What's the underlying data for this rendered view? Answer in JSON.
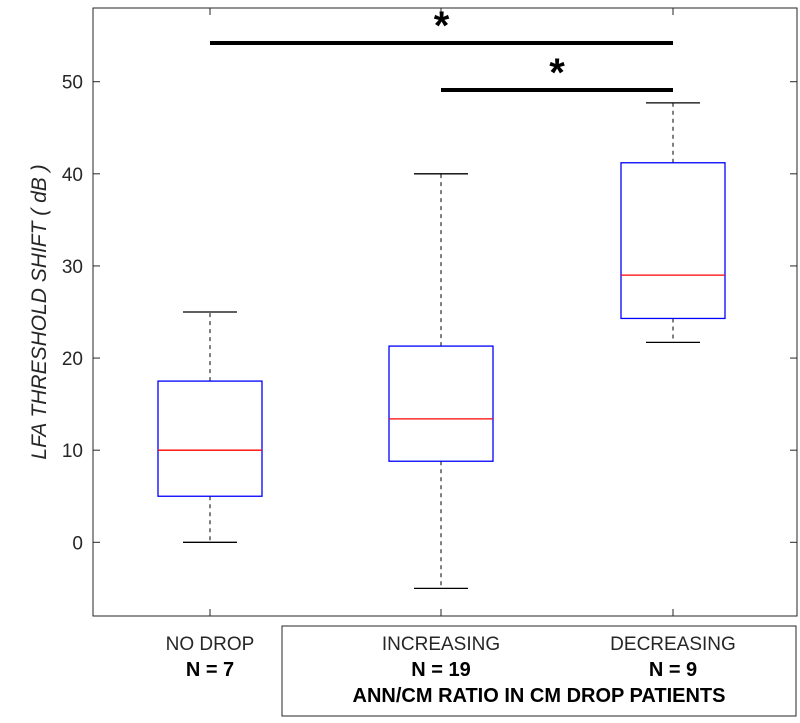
{
  "chart_data": {
    "type": "boxplot",
    "ylabel": "LFA THRESHOLD SHIFT  ( dB )",
    "ylim": [
      -8,
      58
    ],
    "yticks": [
      0,
      10,
      20,
      30,
      40,
      50
    ],
    "grid": false,
    "groups": [
      {
        "name": "NO DROP",
        "n_label": "N = 7",
        "whisker_low": 0,
        "q1": 5,
        "median": 10,
        "q3": 17.5,
        "whisker_high": 25
      },
      {
        "name": "INCREASING",
        "n_label": "N = 19",
        "whisker_low": -5,
        "q1": 8.8,
        "median": 13.4,
        "q3": 21.3,
        "whisker_high": 40
      },
      {
        "name": "DECREASING",
        "n_label": "N = 9",
        "whisker_low": 21.7,
        "q1": 24.3,
        "median": 29,
        "q3": 41.2,
        "whisker_high": 47.7
      }
    ],
    "group_box_label": "ANN/CM RATIO IN CM DROP PATIENTS",
    "significance": [
      {
        "from": 0,
        "to": 2,
        "y": 54.2,
        "label": "*"
      },
      {
        "from": 1,
        "to": 2,
        "y": 49.1,
        "label": "*"
      }
    ],
    "colors": {
      "box": "#0000ff",
      "median": "#ff0000",
      "whisker": "#000000",
      "axis": "#262626"
    }
  }
}
